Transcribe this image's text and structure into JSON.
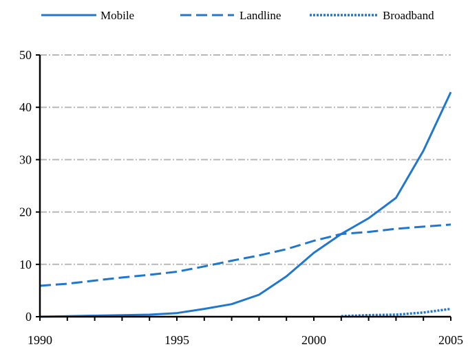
{
  "chart_data": {
    "type": "line",
    "x": [
      1990,
      1991,
      1992,
      1993,
      1994,
      1995,
      1996,
      1997,
      1998,
      1999,
      2000,
      2001,
      2002,
      2003,
      2004,
      2005
    ],
    "series": [
      {
        "name": "Mobile",
        "style": "solid",
        "values": [
          0.0,
          0.1,
          0.2,
          0.3,
          0.4,
          0.7,
          1.5,
          2.4,
          4.2,
          7.7,
          12.2,
          15.8,
          18.8,
          22.7,
          31.7,
          42.9
        ]
      },
      {
        "name": "Landline",
        "style": "dashed",
        "values": [
          5.9,
          6.3,
          6.9,
          7.5,
          8.0,
          8.6,
          9.6,
          10.7,
          11.7,
          12.9,
          14.5,
          15.8,
          16.2,
          16.8,
          17.2,
          17.6
        ]
      },
      {
        "name": "Broadband",
        "style": "dotted",
        "values": [
          null,
          null,
          null,
          null,
          null,
          null,
          null,
          null,
          null,
          null,
          null,
          0.1,
          0.3,
          0.4,
          0.8,
          1.5
        ]
      }
    ],
    "xlim": [
      1990,
      2005
    ],
    "ylim": [
      0,
      50
    ],
    "xticks": [
      "1990",
      "1995",
      "2000",
      "2005"
    ],
    "yticks": [
      "0",
      "10",
      "20",
      "30",
      "40",
      "50"
    ],
    "title": "",
    "xlabel": "",
    "ylabel": "",
    "grid": "horizontal dash-dot",
    "legend": "top",
    "colors": {
      "series": "#1f77d0",
      "grid": "#b8b8b8",
      "axis": "#000000"
    }
  }
}
